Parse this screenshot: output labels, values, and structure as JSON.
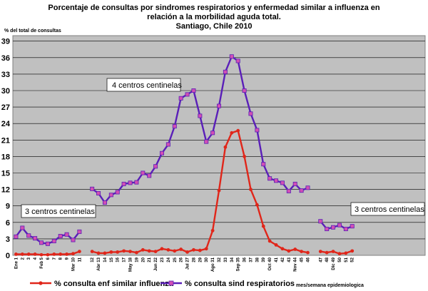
{
  "chart_data": {
    "type": "line",
    "title_lines": [
      "Porcentaje de consultas por sindromes respiratorios y  enfermedad similar a influenza en",
      "relación a la morbilidad aguda total.",
      "Santiago, Chile 2010"
    ],
    "ylabel": "% del total de consultas",
    "xlabel": "mes/semana epidemiologica",
    "ylim": [
      0,
      40
    ],
    "yticks": [
      0,
      3,
      6,
      9,
      12,
      15,
      18,
      21,
      24,
      27,
      30,
      33,
      36,
      39
    ],
    "grid": "horizontal",
    "x_positions": 65,
    "xtick_labels": [
      {
        "i": 0,
        "text": "Ene 1"
      },
      {
        "i": 1,
        "text": "2"
      },
      {
        "i": 2,
        "text": "3"
      },
      {
        "i": 3,
        "text": "4"
      },
      {
        "i": 4,
        "text": "Feb 5"
      },
      {
        "i": 5,
        "text": "6"
      },
      {
        "i": 6,
        "text": "7"
      },
      {
        "i": 7,
        "text": "8"
      },
      {
        "i": 8,
        "text": "9"
      },
      {
        "i": 9,
        "text": "Mar 10"
      },
      {
        "i": 10,
        "text": "11"
      },
      {
        "i": 12,
        "text": "12"
      },
      {
        "i": 13,
        "text": "Abr 13"
      },
      {
        "i": 14,
        "text": "14"
      },
      {
        "i": 15,
        "text": "15"
      },
      {
        "i": 16,
        "text": "16"
      },
      {
        "i": 17,
        "text": "17"
      },
      {
        "i": 18,
        "text": "May 18"
      },
      {
        "i": 19,
        "text": "19"
      },
      {
        "i": 20,
        "text": "20"
      },
      {
        "i": 21,
        "text": "21"
      },
      {
        "i": 22,
        "text": "Jun 22"
      },
      {
        "i": 23,
        "text": "23"
      },
      {
        "i": 24,
        "text": "24"
      },
      {
        "i": 25,
        "text": "25"
      },
      {
        "i": 26,
        "text": "26"
      },
      {
        "i": 27,
        "text": "Jul 27"
      },
      {
        "i": 28,
        "text": "28"
      },
      {
        "i": 29,
        "text": "29"
      },
      {
        "i": 30,
        "text": "30"
      },
      {
        "i": 31,
        "text": "Ago 31"
      },
      {
        "i": 32,
        "text": "32"
      },
      {
        "i": 33,
        "text": "33"
      },
      {
        "i": 34,
        "text": "34"
      },
      {
        "i": 35,
        "text": "Sep 35"
      },
      {
        "i": 36,
        "text": "36"
      },
      {
        "i": 37,
        "text": "37"
      },
      {
        "i": 38,
        "text": "38"
      },
      {
        "i": 39,
        "text": "39"
      },
      {
        "i": 40,
        "text": "Oct 40"
      },
      {
        "i": 41,
        "text": "41"
      },
      {
        "i": 42,
        "text": "42"
      },
      {
        "i": 43,
        "text": "43"
      },
      {
        "i": 44,
        "text": "Nov 44"
      },
      {
        "i": 45,
        "text": "45"
      },
      {
        "i": 46,
        "text": "46"
      },
      {
        "i": 48,
        "text": "47"
      },
      {
        "i": 49,
        "text": "48"
      },
      {
        "i": 50,
        "text": "Dic 49"
      },
      {
        "i": 51,
        "text": "50"
      },
      {
        "i": 52,
        "text": "51"
      },
      {
        "i": 53,
        "text": "52"
      }
    ],
    "series": [
      {
        "name": "% consulta sind respiratorios",
        "color": "#5a1fb8",
        "marker_color": "#d24fb4",
        "segments": [
          {
            "start": 0,
            "values": [
              3.4,
              5.0,
              3.6,
              3.1,
              2.3,
              2.1,
              2.6,
              3.5,
              3.8,
              2.8,
              4.3
            ]
          },
          {
            "start": 12,
            "values": [
              12.1,
              11.3,
              9.6,
              11.0,
              11.5,
              13.0,
              13.2,
              13.3,
              15.0,
              14.5,
              16.2,
              18.6,
              20.2,
              23.5,
              28.6,
              29.3,
              30.0,
              25.4,
              20.7,
              22.3,
              27.2,
              33.4,
              36.2,
              35.4,
              30.0,
              25.8,
              22.8,
              16.6,
              14.0,
              13.6,
              13.2,
              11.7,
              13.0,
              11.8,
              12.3
            ]
          },
          {
            "start": 48,
            "values": [
              6.2,
              4.8,
              5.1,
              5.5,
              4.8,
              5.3
            ]
          }
        ]
      },
      {
        "name": "% consulta enf similar influenza",
        "color": "#e0261a",
        "segments": [
          {
            "start": 0,
            "values": [
              0.2,
              0.2,
              0.2,
              0.2,
              0.1,
              0.1,
              0.2,
              0.2,
              0.2,
              0.3,
              0.7
            ]
          },
          {
            "start": 12,
            "values": [
              0.7,
              0.4,
              0.4,
              0.6,
              0.6,
              0.8,
              0.7,
              0.5,
              1.0,
              0.8,
              0.7,
              1.2,
              1.0,
              0.8,
              1.1,
              0.6,
              1.0,
              0.9,
              1.2,
              4.5,
              11.8,
              19.7,
              22.3,
              22.7,
              18.0,
              12.0,
              9.2,
              5.3,
              2.6,
              1.9,
              1.2,
              0.8,
              1.1,
              0.7,
              0.5
            ]
          },
          {
            "start": 48,
            "values": [
              0.7,
              0.5,
              0.7,
              0.3,
              0.4,
              0.8
            ]
          }
        ]
      }
    ],
    "annotations": [
      "4 centros centinelas",
      "3 centros centinelas",
      "3 centros centinelas"
    ],
    "legend_position": "bottom"
  }
}
